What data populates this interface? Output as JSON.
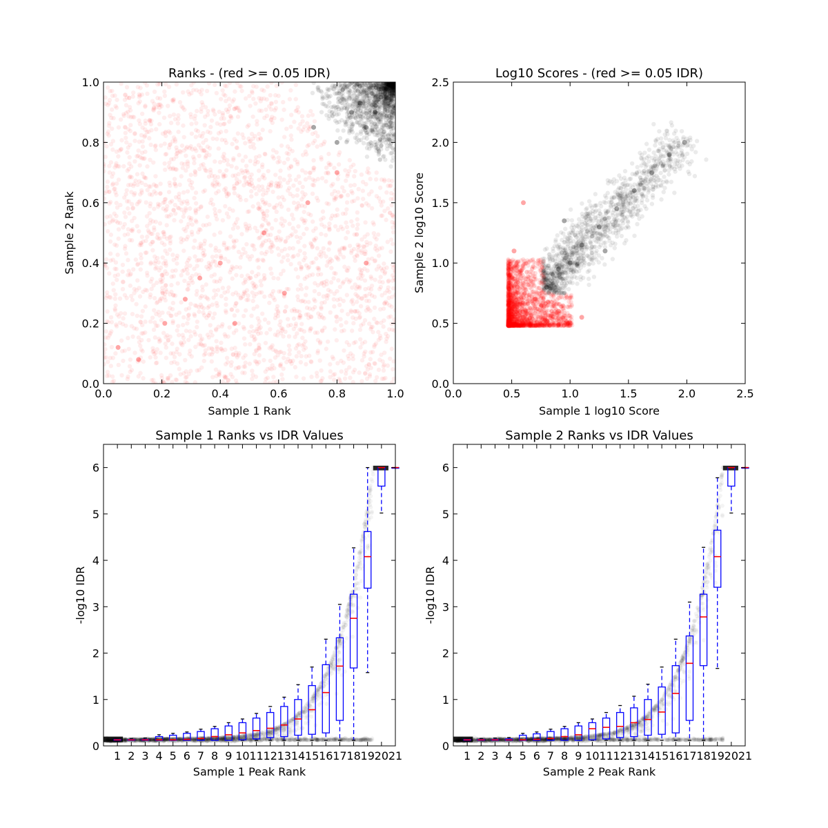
{
  "figure": {
    "background": "#ffffff"
  },
  "colors": {
    "low_idr": "#ff0000",
    "high_idr": "#000000",
    "box": "#0000ff",
    "median": "#ff0000"
  },
  "chart_data": [
    {
      "id": "ranks",
      "type": "scatter",
      "title": "Ranks - (red >= 0.05 IDR)",
      "xlabel": "Sample 1 Rank",
      "ylabel": "Sample 2 Rank",
      "xlim": [
        0.0,
        1.0
      ],
      "ylim": [
        0.0,
        1.0
      ],
      "xticks": [
        "0.0",
        "0.2",
        "0.4",
        "0.6",
        "0.8",
        "1.0"
      ],
      "yticks": [
        "0.0",
        "0.2",
        "0.4",
        "0.6",
        "0.8",
        "1.0"
      ],
      "grid": false,
      "series": [
        {
          "color": "#ff0000",
          "points": [
            [
              0.05,
              0.12
            ],
            [
              0.12,
              0.08
            ],
            [
              0.21,
              0.2
            ],
            [
              0.28,
              0.28
            ],
            [
              0.33,
              0.35
            ],
            [
              0.4,
              0.4
            ],
            [
              0.45,
              0.2
            ],
            [
              0.55,
              0.5
            ],
            [
              0.62,
              0.3
            ],
            [
              0.7,
              0.6
            ],
            [
              0.8,
              0.7
            ],
            [
              0.9,
              0.4
            ]
          ]
        },
        {
          "color": "#000000",
          "points": [
            [
              0.72,
              0.85
            ],
            [
              0.8,
              0.8
            ],
            [
              0.85,
              0.9
            ],
            [
              0.9,
              0.85
            ],
            [
              0.95,
              0.95
            ],
            [
              0.98,
              0.99
            ],
            [
              0.88,
              0.93
            ],
            [
              0.93,
              0.9
            ]
          ]
        }
      ]
    },
    {
      "id": "scores",
      "type": "scatter",
      "title": "Log10 Scores - (red >= 0.05 IDR)",
      "xlabel": "Sample 1 log10 Score",
      "ylabel": "Sample 2 log10 Score",
      "xlim": [
        0.0,
        2.5
      ],
      "ylim": [
        0.0,
        2.5
      ],
      "xticks": [
        "0.0",
        "0.5",
        "1.0",
        "1.5",
        "2.0",
        "2.5"
      ],
      "yticks": [
        "0.0",
        "0.5",
        "1.0",
        "1.5",
        "2.0",
        "2.5"
      ],
      "grid": false,
      "series": [
        {
          "color": "#ff0000",
          "points": [
            [
              0.48,
              0.49
            ],
            [
              0.5,
              0.6
            ],
            [
              0.55,
              0.8
            ],
            [
              0.6,
              0.55
            ],
            [
              0.7,
              0.7
            ],
            [
              0.8,
              0.52
            ],
            [
              0.9,
              0.6
            ],
            [
              1.0,
              0.5
            ],
            [
              1.1,
              0.55
            ],
            [
              0.52,
              1.1
            ],
            [
              0.6,
              1.5
            ]
          ]
        },
        {
          "color": "#000000",
          "points": [
            [
              0.8,
              0.8
            ],
            [
              0.9,
              0.95
            ],
            [
              1.0,
              1.0
            ],
            [
              1.1,
              1.15
            ],
            [
              1.25,
              1.3
            ],
            [
              1.4,
              1.45
            ],
            [
              1.55,
              1.6
            ],
            [
              1.7,
              1.75
            ],
            [
              1.85,
              1.9
            ],
            [
              1.98,
              2.0
            ],
            [
              0.95,
              1.35
            ],
            [
              1.3,
              1.1
            ]
          ]
        }
      ]
    },
    {
      "id": "s1_idr",
      "type": "box",
      "title": "Sample 1 Ranks vs IDR Values",
      "xlabel": "Sample 1 Peak Rank",
      "ylabel": "-log10 IDR",
      "xlim": [
        0,
        21
      ],
      "ylim": [
        0,
        6.5
      ],
      "yticks": [
        "0",
        "1",
        "2",
        "3",
        "4",
        "5",
        "6"
      ],
      "categories": [
        "1",
        "2",
        "3",
        "4",
        "5",
        "6",
        "7",
        "8",
        "9",
        "10",
        "11",
        "12",
        "13",
        "14",
        "15",
        "16",
        "17",
        "18",
        "19",
        "20",
        "21"
      ],
      "grid": false,
      "boxes": [
        {
          "whislo": 0.12,
          "q1": 0.12,
          "med": 0.13,
          "q3": 0.14,
          "whishi": 0.15
        },
        {
          "whislo": 0.12,
          "q1": 0.12,
          "med": 0.13,
          "q3": 0.14,
          "whishi": 0.16
        },
        {
          "whislo": 0.12,
          "q1": 0.12,
          "med": 0.13,
          "q3": 0.14,
          "whishi": 0.17
        },
        {
          "whislo": 0.12,
          "q1": 0.12,
          "med": 0.13,
          "q3": 0.2,
          "whishi": 0.24
        },
        {
          "whislo": 0.12,
          "q1": 0.12,
          "med": 0.13,
          "q3": 0.23,
          "whishi": 0.27
        },
        {
          "whislo": 0.12,
          "q1": 0.12,
          "med": 0.14,
          "q3": 0.27,
          "whishi": 0.3
        },
        {
          "whislo": 0.12,
          "q1": 0.12,
          "med": 0.16,
          "q3": 0.31,
          "whishi": 0.36
        },
        {
          "whislo": 0.12,
          "q1": 0.12,
          "med": 0.2,
          "q3": 0.37,
          "whishi": 0.42
        },
        {
          "whislo": 0.12,
          "q1": 0.12,
          "med": 0.24,
          "q3": 0.43,
          "whishi": 0.5
        },
        {
          "whislo": 0.12,
          "q1": 0.13,
          "med": 0.28,
          "q3": 0.5,
          "whishi": 0.58
        },
        {
          "whislo": 0.12,
          "q1": 0.15,
          "med": 0.33,
          "q3": 0.6,
          "whishi": 0.7
        },
        {
          "whislo": 0.12,
          "q1": 0.18,
          "med": 0.38,
          "q3": 0.72,
          "whishi": 0.85
        },
        {
          "whislo": 0.12,
          "q1": 0.2,
          "med": 0.45,
          "q3": 0.85,
          "whishi": 1.05
        },
        {
          "whislo": 0.12,
          "q1": 0.23,
          "med": 0.58,
          "q3": 1.0,
          "whishi": 1.32
        },
        {
          "whislo": 0.12,
          "q1": 0.25,
          "med": 0.78,
          "q3": 1.3,
          "whishi": 1.7
        },
        {
          "whislo": 0.12,
          "q1": 0.28,
          "med": 1.15,
          "q3": 1.75,
          "whishi": 2.3
        },
        {
          "whislo": 0.12,
          "q1": 0.55,
          "med": 1.72,
          "q3": 2.33,
          "whishi": 3.05
        },
        {
          "whislo": 0.12,
          "q1": 1.68,
          "med": 2.75,
          "q3": 3.27,
          "whishi": 4.27
        },
        {
          "whislo": 1.58,
          "q1": 3.4,
          "med": 4.08,
          "q3": 4.62,
          "whishi": 6.0
        },
        {
          "whislo": 5.02,
          "q1": 5.6,
          "med": 6.0,
          "q3": 6.0,
          "whishi": 6.0
        },
        {
          "whislo": 6.0,
          "q1": 6.0,
          "med": 6.0,
          "q3": 6.0,
          "whishi": 6.0
        }
      ]
    },
    {
      "id": "s2_idr",
      "type": "box",
      "title": "Sample 2 Ranks vs IDR Values",
      "xlabel": "Sample 2 Peak Rank",
      "ylabel": "-log10 IDR",
      "xlim": [
        0,
        21
      ],
      "ylim": [
        0,
        6.5
      ],
      "yticks": [
        "0",
        "1",
        "2",
        "3",
        "4",
        "5",
        "6"
      ],
      "categories": [
        "1",
        "2",
        "3",
        "4",
        "5",
        "6",
        "7",
        "8",
        "9",
        "10",
        "11",
        "12",
        "13",
        "14",
        "15",
        "16",
        "17",
        "18",
        "19",
        "20",
        "21"
      ],
      "grid": false,
      "boxes": [
        {
          "whislo": 0.12,
          "q1": 0.12,
          "med": 0.13,
          "q3": 0.14,
          "whishi": 0.15
        },
        {
          "whislo": 0.12,
          "q1": 0.12,
          "med": 0.13,
          "q3": 0.14,
          "whishi": 0.16
        },
        {
          "whislo": 0.12,
          "q1": 0.12,
          "med": 0.13,
          "q3": 0.14,
          "whishi": 0.17
        },
        {
          "whislo": 0.12,
          "q1": 0.12,
          "med": 0.13,
          "q3": 0.15,
          "whishi": 0.18
        },
        {
          "whislo": 0.12,
          "q1": 0.12,
          "med": 0.13,
          "q3": 0.23,
          "whishi": 0.27
        },
        {
          "whislo": 0.12,
          "q1": 0.12,
          "med": 0.14,
          "q3": 0.26,
          "whishi": 0.3
        },
        {
          "whislo": 0.12,
          "q1": 0.12,
          "med": 0.16,
          "q3": 0.31,
          "whishi": 0.36
        },
        {
          "whislo": 0.12,
          "q1": 0.12,
          "med": 0.2,
          "q3": 0.37,
          "whishi": 0.42
        },
        {
          "whislo": 0.12,
          "q1": 0.12,
          "med": 0.24,
          "q3": 0.43,
          "whishi": 0.5
        },
        {
          "whislo": 0.12,
          "q1": 0.13,
          "med": 0.37,
          "q3": 0.5,
          "whishi": 0.58
        },
        {
          "whislo": 0.12,
          "q1": 0.15,
          "med": 0.4,
          "q3": 0.6,
          "whishi": 0.72
        },
        {
          "whislo": 0.12,
          "q1": 0.18,
          "med": 0.42,
          "q3": 0.72,
          "whishi": 0.87
        },
        {
          "whislo": 0.12,
          "q1": 0.2,
          "med": 0.5,
          "q3": 0.82,
          "whishi": 1.07
        },
        {
          "whislo": 0.12,
          "q1": 0.23,
          "med": 0.57,
          "q3": 1.0,
          "whishi": 1.33
        },
        {
          "whislo": 0.12,
          "q1": 0.25,
          "med": 0.73,
          "q3": 1.27,
          "whishi": 1.7
        },
        {
          "whislo": 0.12,
          "q1": 0.28,
          "med": 1.13,
          "q3": 1.73,
          "whishi": 2.3
        },
        {
          "whislo": 0.12,
          "q1": 0.55,
          "med": 1.78,
          "q3": 2.37,
          "whishi": 3.1
        },
        {
          "whislo": 0.12,
          "q1": 1.73,
          "med": 2.78,
          "q3": 3.27,
          "whishi": 4.28
        },
        {
          "whislo": 1.67,
          "q1": 3.42,
          "med": 4.08,
          "q3": 4.65,
          "whishi": 5.78
        },
        {
          "whislo": 5.02,
          "q1": 5.6,
          "med": 6.0,
          "q3": 6.0,
          "whishi": 6.0
        },
        {
          "whislo": 6.0,
          "q1": 6.0,
          "med": 6.0,
          "q3": 6.0,
          "whishi": 6.0
        }
      ]
    }
  ]
}
